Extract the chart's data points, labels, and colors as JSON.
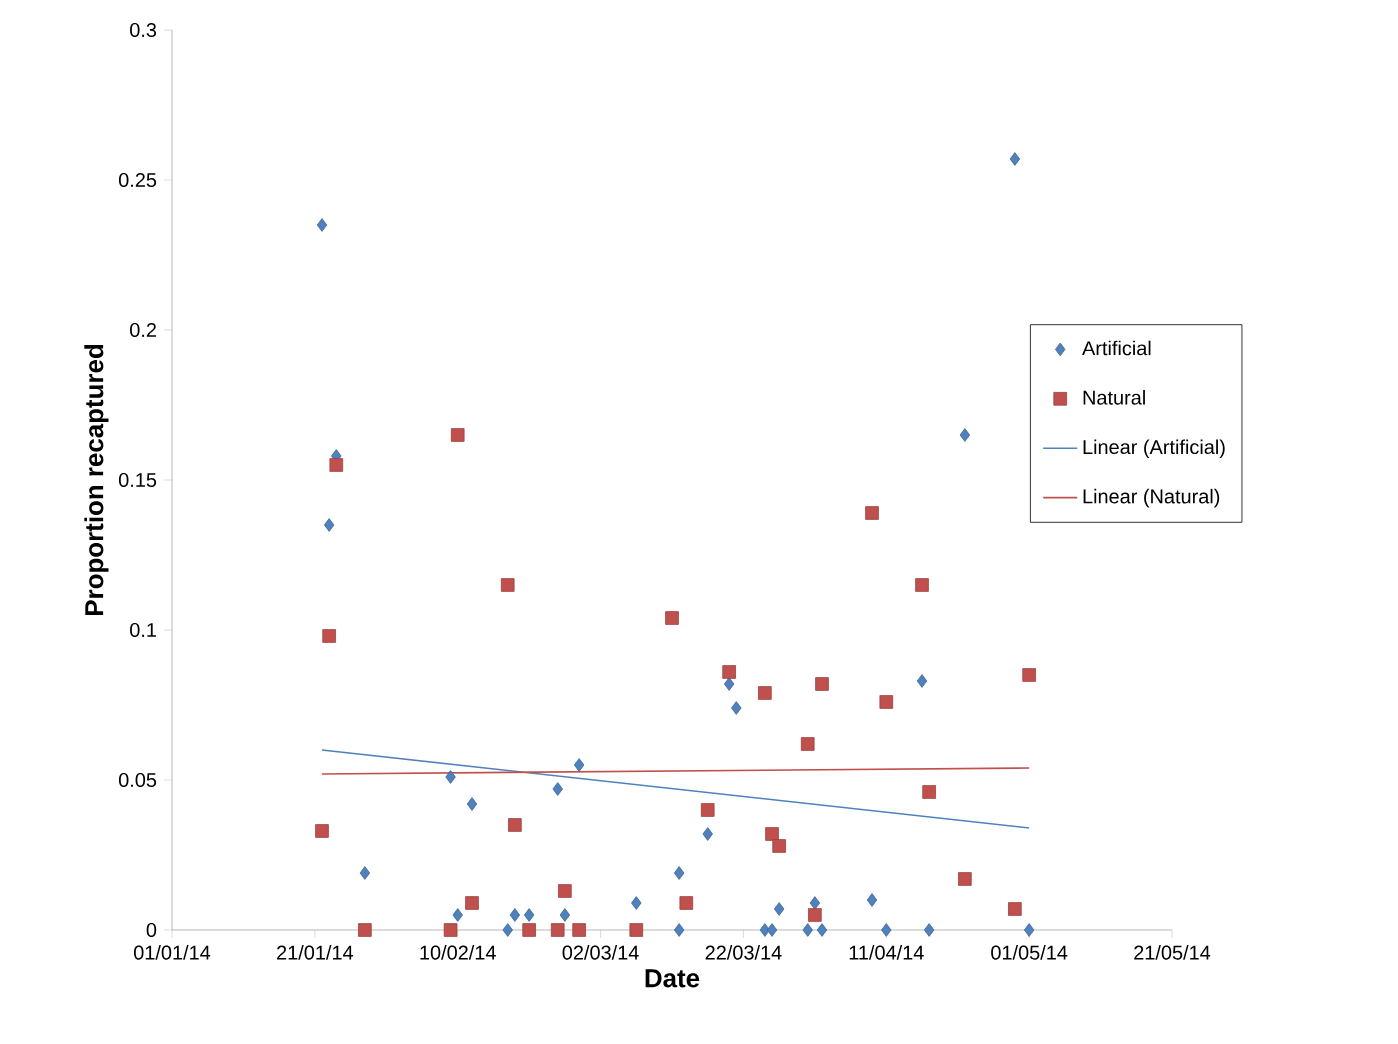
{
  "chart_data": {
    "type": "scatter",
    "xlabel": "Date",
    "ylabel": "Proportion recaptured",
    "xlim": [
      "2014-01-01",
      "2014-05-21"
    ],
    "xticks": [
      {
        "value": "2014-01-01",
        "label": "01/01/14"
      },
      {
        "value": "2014-01-21",
        "label": "21/01/14"
      },
      {
        "value": "2014-02-10",
        "label": "10/02/14"
      },
      {
        "value": "2014-03-02",
        "label": "02/03/14"
      },
      {
        "value": "2014-03-22",
        "label": "22/03/14"
      },
      {
        "value": "2014-04-11",
        "label": "11/04/14"
      },
      {
        "value": "2014-05-01",
        "label": "01/05/14"
      },
      {
        "value": "2014-05-21",
        "label": "21/05/14"
      }
    ],
    "ylim": [
      0,
      0.3
    ],
    "yticks": [
      0,
      0.05,
      0.1,
      0.15,
      0.2,
      0.25,
      0.3
    ],
    "legend": "right",
    "series": [
      {
        "name": "Artificial",
        "color": "#4f81bd",
        "marker": "diamond",
        "x": [
          "2014-01-22",
          "2014-01-23",
          "2014-01-24",
          "2014-01-28",
          "2014-02-09",
          "2014-02-10",
          "2014-02-12",
          "2014-02-17",
          "2014-02-18",
          "2014-02-20",
          "2014-02-24",
          "2014-02-25",
          "2014-02-27",
          "2014-03-07",
          "2014-03-13",
          "2014-03-13",
          "2014-03-17",
          "2014-03-20",
          "2014-03-21",
          "2014-03-25",
          "2014-03-26",
          "2014-03-27",
          "2014-03-31",
          "2014-04-01",
          "2014-04-02",
          "2014-04-09",
          "2014-04-11",
          "2014-04-16",
          "2014-04-17",
          "2014-04-22",
          "2014-04-29",
          "2014-05-01"
        ],
        "values": [
          0.235,
          0.135,
          0.158,
          0.019,
          0.051,
          0.005,
          0.042,
          0,
          0.005,
          0.005,
          0.047,
          0.005,
          0.055,
          0.009,
          0,
          0.019,
          0.032,
          0.082,
          0.074,
          0,
          0,
          0.007,
          0,
          0.009,
          0,
          0.01,
          0,
          0.083,
          0,
          0.165,
          0.257,
          0
        ]
      },
      {
        "name": "Natural",
        "color": "#c0504d",
        "marker": "square",
        "x": [
          "2014-01-22",
          "2014-01-23",
          "2014-01-24",
          "2014-01-28",
          "2014-02-09",
          "2014-02-10",
          "2014-02-12",
          "2014-02-17",
          "2014-02-18",
          "2014-02-20",
          "2014-02-24",
          "2014-02-25",
          "2014-02-27",
          "2014-03-07",
          "2014-03-12",
          "2014-03-14",
          "2014-03-17",
          "2014-03-20",
          "2014-03-25",
          "2014-03-26",
          "2014-03-27",
          "2014-03-31",
          "2014-04-01",
          "2014-04-02",
          "2014-04-09",
          "2014-04-11",
          "2014-04-16",
          "2014-04-17",
          "2014-04-22",
          "2014-04-29",
          "2014-05-01"
        ],
        "values": [
          0.033,
          0.098,
          0.155,
          0,
          0,
          0.165,
          0.009,
          0.115,
          0.035,
          0,
          0,
          0.013,
          0,
          0,
          0.104,
          0.009,
          0.04,
          0.086,
          0.079,
          0.032,
          0.028,
          0.062,
          0.005,
          0.082,
          0.139,
          0.076,
          0.115,
          0.046,
          0.017,
          0.007,
          0.085
        ]
      },
      {
        "name": "Linear (Artificial)",
        "type": "line",
        "color": "#4f81bd",
        "line_style": "solid",
        "x": [
          "2014-01-22",
          "2014-05-01"
        ],
        "values": [
          0.06,
          0.034
        ]
      },
      {
        "name": "Linear (Natural)",
        "type": "line",
        "color": "#c0504d",
        "line_style": "solid",
        "x": [
          "2014-01-22",
          "2014-05-01"
        ],
        "values": [
          0.052,
          0.054
        ]
      }
    ]
  }
}
